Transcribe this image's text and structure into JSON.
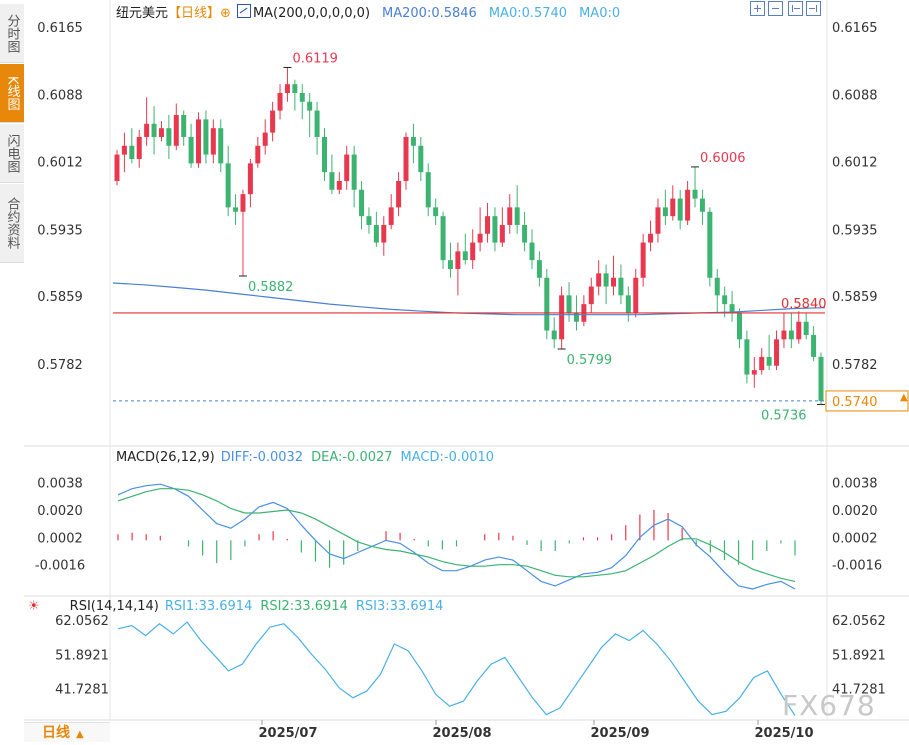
{
  "side_tabs": [
    "分时图",
    "K线图",
    "闪电图",
    "合约资料"
  ],
  "main_legend": {
    "symbol": "纽元美元",
    "period_tag": "【日线】",
    "ma_label": "MA(200,0,0,0,0,0)",
    "ma200": "MA200:0.5846",
    "ma0a": "MA0:0.5740",
    "ma0b": "MA0:0"
  },
  "macd_legend": {
    "title": "MACD(26,12,9)",
    "diff": "DIFF:-0.0032",
    "dea": "DEA:-0.0027",
    "macd": "MACD:-0.0010"
  },
  "rsi_legend": {
    "title": "RSI(14,14,14)",
    "rsi1": "RSI1:33.6914",
    "rsi2": "RSI2:33.6914",
    "rsi3": "RSI3:33.6914"
  },
  "bottom": {
    "period_button": "日线"
  },
  "watermark": "FX678",
  "colors": {
    "up": "#e8384f",
    "down": "#3cb371",
    "ma200": "#4a7fd4",
    "hline": "#e03030",
    "diff": "#4a90e2",
    "dea": "#3cb371",
    "rsi": "#4ab0e6",
    "accent": "#e8880a"
  },
  "chart_data": [
    {
      "type": "candlestick",
      "title": "纽元美元",
      "y_ticks": [
        0.6165,
        0.6088,
        0.6012,
        0.5935,
        0.5859,
        0.5782
      ],
      "ylim": [
        0.5724,
        0.6165
      ],
      "x_ticks": [
        "2025/07",
        "2025/08",
        "2025/09",
        "2025/10"
      ],
      "annotations": {
        "high": "0.6119",
        "high_sep": "0.6006",
        "low_jun": "0.5882",
        "low_aug": "0.5799",
        "low_last": "0.5736",
        "hline": "0.5840",
        "last_price": "0.5740"
      },
      "hline_value": 0.584,
      "last_price": 0.574,
      "candles": [
        [
          0.599,
          0.602,
          0.5985,
          0.6025
        ],
        [
          0.602,
          0.603,
          0.6,
          0.6045
        ],
        [
          0.603,
          0.6015,
          0.601,
          0.605
        ],
        [
          0.6015,
          0.604,
          0.6005,
          0.6048
        ],
        [
          0.604,
          0.6055,
          0.603,
          0.6085
        ],
        [
          0.6055,
          0.604,
          0.602,
          0.6075
        ],
        [
          0.604,
          0.605,
          0.6035,
          0.6058
        ],
        [
          0.605,
          0.603,
          0.6015,
          0.6065
        ],
        [
          0.603,
          0.6065,
          0.6025,
          0.6078
        ],
        [
          0.6065,
          0.604,
          0.603,
          0.607
        ],
        [
          0.604,
          0.601,
          0.6005,
          0.6055
        ],
        [
          0.601,
          0.606,
          0.6005,
          0.6068
        ],
        [
          0.606,
          0.602,
          0.601,
          0.607
        ],
        [
          0.602,
          0.605,
          0.601,
          0.606
        ],
        [
          0.605,
          0.601,
          0.6,
          0.606
        ],
        [
          0.601,
          0.596,
          0.595,
          0.603
        ],
        [
          0.596,
          0.5955,
          0.594,
          0.5975
        ],
        [
          0.5955,
          0.5975,
          0.5882,
          0.598
        ],
        [
          0.5975,
          0.601,
          0.596,
          0.6015
        ],
        [
          0.601,
          0.603,
          0.6005,
          0.604
        ],
        [
          0.603,
          0.6045,
          0.602,
          0.606
        ],
        [
          0.6045,
          0.607,
          0.6035,
          0.608
        ],
        [
          0.607,
          0.609,
          0.606,
          0.61
        ],
        [
          0.609,
          0.61,
          0.608,
          0.6119
        ],
        [
          0.61,
          0.609,
          0.607,
          0.6105
        ],
        [
          0.609,
          0.608,
          0.606,
          0.61
        ],
        [
          0.608,
          0.607,
          0.604,
          0.609
        ],
        [
          0.607,
          0.604,
          0.602,
          0.608
        ],
        [
          0.604,
          0.6,
          0.599,
          0.605
        ],
        [
          0.6,
          0.598,
          0.5975,
          0.602
        ],
        [
          0.598,
          0.599,
          0.5975,
          0.6
        ],
        [
          0.599,
          0.602,
          0.598,
          0.603
        ],
        [
          0.602,
          0.598,
          0.596,
          0.603
        ],
        [
          0.598,
          0.595,
          0.5935,
          0.599
        ],
        [
          0.595,
          0.594,
          0.593,
          0.596
        ],
        [
          0.594,
          0.592,
          0.5915,
          0.5955
        ],
        [
          0.592,
          0.594,
          0.5905,
          0.595
        ],
        [
          0.594,
          0.596,
          0.5935,
          0.5975
        ],
        [
          0.596,
          0.599,
          0.595,
          0.6
        ],
        [
          0.599,
          0.604,
          0.598,
          0.6045
        ],
        [
          0.604,
          0.603,
          0.601,
          0.6055
        ],
        [
          0.603,
          0.6,
          0.599,
          0.604
        ],
        [
          0.6,
          0.596,
          0.595,
          0.601
        ],
        [
          0.596,
          0.595,
          0.594,
          0.597
        ],
        [
          0.595,
          0.59,
          0.589,
          0.5955
        ],
        [
          0.59,
          0.589,
          0.588,
          0.592
        ],
        [
          0.589,
          0.591,
          0.586,
          0.592
        ],
        [
          0.591,
          0.59,
          0.5895,
          0.593
        ],
        [
          0.59,
          0.592,
          0.589,
          0.5935
        ],
        [
          0.592,
          0.593,
          0.591,
          0.596
        ],
        [
          0.593,
          0.595,
          0.592,
          0.5965
        ],
        [
          0.595,
          0.592,
          0.591,
          0.596
        ],
        [
          0.592,
          0.594,
          0.5915,
          0.596
        ],
        [
          0.594,
          0.596,
          0.593,
          0.5975
        ],
        [
          0.596,
          0.594,
          0.593,
          0.5985
        ],
        [
          0.594,
          0.592,
          0.591,
          0.5955
        ],
        [
          0.592,
          0.59,
          0.589,
          0.5935
        ],
        [
          0.59,
          0.588,
          0.587,
          0.591
        ],
        [
          0.588,
          0.582,
          0.581,
          0.589
        ],
        [
          0.582,
          0.581,
          0.58,
          0.5835
        ],
        [
          0.581,
          0.586,
          0.5799,
          0.587
        ],
        [
          0.586,
          0.584,
          0.583,
          0.5875
        ],
        [
          0.584,
          0.583,
          0.582,
          0.586
        ],
        [
          0.583,
          0.585,
          0.5825,
          0.586
        ],
        [
          0.585,
          0.587,
          0.584,
          0.588
        ],
        [
          0.587,
          0.5885,
          0.586,
          0.59
        ],
        [
          0.5885,
          0.587,
          0.585,
          0.5895
        ],
        [
          0.587,
          0.588,
          0.586,
          0.5905
        ],
        [
          0.588,
          0.586,
          0.585,
          0.5895
        ],
        [
          0.586,
          0.584,
          0.583,
          0.587
        ],
        [
          0.584,
          0.588,
          0.5835,
          0.589
        ],
        [
          0.588,
          0.592,
          0.587,
          0.593
        ],
        [
          0.592,
          0.593,
          0.591,
          0.5945
        ],
        [
          0.593,
          0.596,
          0.592,
          0.597
        ],
        [
          0.596,
          0.595,
          0.594,
          0.598
        ],
        [
          0.595,
          0.597,
          0.5945,
          0.5985
        ],
        [
          0.597,
          0.5945,
          0.5935,
          0.598
        ],
        [
          0.5945,
          0.598,
          0.594,
          0.599
        ],
        [
          0.598,
          0.597,
          0.596,
          0.6006
        ],
        [
          0.597,
          0.5955,
          0.594,
          0.598
        ],
        [
          0.5955,
          0.588,
          0.587,
          0.596
        ],
        [
          0.588,
          0.586,
          0.584,
          0.589
        ],
        [
          0.586,
          0.585,
          0.5835,
          0.587
        ],
        [
          0.585,
          0.584,
          0.583,
          0.5865
        ],
        [
          0.584,
          0.581,
          0.58,
          0.5845
        ],
        [
          0.581,
          0.577,
          0.576,
          0.582
        ],
        [
          0.577,
          0.5775,
          0.5755,
          0.579
        ],
        [
          0.5775,
          0.579,
          0.577,
          0.58
        ],
        [
          0.579,
          0.578,
          0.5775,
          0.5815
        ],
        [
          0.578,
          0.581,
          0.5775,
          0.582
        ],
        [
          0.581,
          0.582,
          0.58,
          0.584
        ],
        [
          0.582,
          0.581,
          0.58,
          0.584
        ],
        [
          0.581,
          0.583,
          0.5805,
          0.5842
        ],
        [
          0.583,
          0.5815,
          0.581,
          0.584
        ],
        [
          0.5815,
          0.579,
          0.5785,
          0.5825
        ],
        [
          0.579,
          0.574,
          0.5736,
          0.5795
        ]
      ],
      "ma200": [
        0.5874,
        0.5872,
        0.5869,
        0.5866,
        0.5862,
        0.5858,
        0.5854,
        0.585,
        0.5847,
        0.5844,
        0.5842,
        0.584,
        0.5839,
        0.5838,
        0.5838,
        0.5838,
        0.5838,
        0.5838,
        0.5839,
        0.584,
        0.5841,
        0.5843,
        0.5845,
        0.5846
      ],
      "series": [
        {
          "name": "MA200",
          "value_label": "MA200:0.5846"
        }
      ]
    },
    {
      "type": "bar+line",
      "title": "MACD(26,12,9)",
      "y_ticks": [
        0.0038,
        0.002,
        0.0002,
        -0.0016
      ],
      "ylim": [
        -0.0034,
        0.0045
      ],
      "series": [
        {
          "name": "DIFF",
          "values": [
            0.003,
            0.0034,
            0.0036,
            0.0037,
            0.0034,
            0.0029,
            0.002,
            0.0011,
            0.0008,
            0.0014,
            0.0022,
            0.0025,
            0.0021,
            0.001,
            0.0,
            -0.0009,
            -0.0012,
            -0.0008,
            -0.0004,
            0.0,
            -0.0002,
            -0.0008,
            -0.0015,
            -0.002,
            -0.002,
            -0.0017,
            -0.0013,
            -0.0011,
            -0.0013,
            -0.002,
            -0.0027,
            -0.003,
            -0.0026,
            -0.0022,
            -0.0021,
            -0.0018,
            -0.001,
            0.0002,
            0.001,
            0.0014,
            0.0009,
            -0.0003,
            -0.0011,
            -0.0021,
            -0.003,
            -0.0032,
            -0.0029,
            -0.0027,
            -0.0032
          ]
        },
        {
          "name": "DEA",
          "values": [
            0.0026,
            0.0029,
            0.0032,
            0.0034,
            0.0034,
            0.0033,
            0.003,
            0.0026,
            0.0021,
            0.0018,
            0.0018,
            0.0019,
            0.002,
            0.0018,
            0.0014,
            0.0009,
            0.0004,
            -0.0001,
            -0.0004,
            -0.0006,
            -0.0007,
            -0.0009,
            -0.0011,
            -0.0014,
            -0.0016,
            -0.0017,
            -0.0017,
            -0.0016,
            -0.0016,
            -0.0017,
            -0.002,
            -0.0023,
            -0.0024,
            -0.0024,
            -0.0023,
            -0.0022,
            -0.002,
            -0.0015,
            -0.001,
            -0.0004,
            0.0001,
            0.0001,
            -0.0003,
            -0.0008,
            -0.0014,
            -0.0019,
            -0.0022,
            -0.0025,
            -0.0027
          ]
        },
        {
          "name": "MACD",
          "values": [
            0.0004,
            0.0005,
            0.0004,
            0.0003,
            0.0,
            -0.0004,
            -0.001,
            -0.0015,
            -0.0013,
            -0.0004,
            0.0004,
            0.0006,
            0.0001,
            -0.0008,
            -0.0014,
            -0.0018,
            -0.0016,
            -0.0007,
            0.0,
            0.0006,
            0.0005,
            0.0001,
            -0.0004,
            -0.0006,
            -0.0004,
            0.0,
            0.0004,
            0.0005,
            0.0003,
            -0.0003,
            -0.0007,
            -0.0007,
            -0.0002,
            0.0002,
            0.0002,
            0.0004,
            0.001,
            0.0017,
            0.002,
            0.0018,
            0.0008,
            -0.0004,
            -0.0008,
            -0.0013,
            -0.0016,
            -0.0013,
            -0.0007,
            -0.0002,
            -0.001
          ]
        }
      ]
    },
    {
      "type": "line",
      "title": "RSI(14,14,14)",
      "y_ticks": [
        62.0562,
        51.8921,
        41.7281
      ],
      "ylim": [
        33.0,
        64.5
      ],
      "series": [
        {
          "name": "RSI1",
          "values": [
            59.5,
            60.5,
            57.5,
            61.0,
            58.0,
            61.5,
            56.0,
            51.5,
            47.0,
            49.0,
            55.0,
            60.0,
            61.0,
            57.0,
            52.0,
            47.5,
            42.0,
            39.0,
            41.0,
            46.0,
            55.0,
            53.0,
            47.0,
            40.0,
            36.5,
            38.0,
            44.0,
            49.0,
            51.0,
            45.0,
            39.0,
            34.0,
            36.0,
            42.0,
            48.0,
            54.0,
            58.0,
            56.0,
            59.0,
            55.0,
            50.0,
            44.0,
            38.0,
            34.0,
            35.0,
            39.0,
            45.0,
            47.0,
            40.0,
            33.7
          ]
        }
      ]
    }
  ]
}
